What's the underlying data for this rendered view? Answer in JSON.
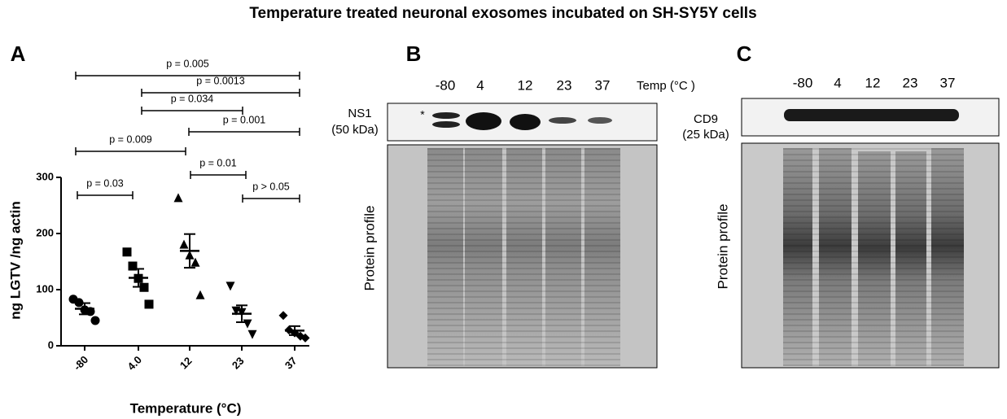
{
  "title": "Temperature treated neuronal exosomes incubated on SH-SY5Y cells",
  "chart_data": {
    "type": "scatter",
    "panel_label": "A",
    "y_label": "ng LGTV /ng actin",
    "x_label": "Temperature (°C)",
    "categories": [
      "-80",
      "4.0",
      "12",
      "23",
      "37"
    ],
    "markers": [
      "circle",
      "square",
      "triangle",
      "triangle-down",
      "diamond"
    ],
    "color": "#000000",
    "values": [
      [
        83,
        77,
        64,
        61,
        45
      ],
      [
        167,
        142,
        120,
        104,
        74
      ],
      [
        264,
        181,
        162,
        149,
        91
      ],
      [
        106,
        62,
        59,
        39,
        20
      ],
      [
        54,
        28,
        23,
        17,
        14
      ]
    ],
    "means": [
      66,
      121,
      169,
      57,
      27
    ],
    "sem": [
      10,
      16,
      30,
      15,
      8
    ],
    "ylim": [
      0,
      300
    ],
    "yticks": [
      0,
      100,
      200,
      300
    ],
    "annotations": [
      "p = 0.005",
      "p = 0.0013",
      "p = 0.034",
      "p = 0.001",
      "p = 0.009",
      "p = 0.01",
      "p = 0.03",
      "p > 0.05"
    ]
  },
  "panel_b": {
    "label": "B",
    "lanes": [
      "-80",
      "4",
      "12",
      "23",
      "37"
    ],
    "temp_label": "Temp (°C )",
    "blot": "NS1",
    "size": "(50 kDa)",
    "star": "*",
    "gel": "Protein profile"
  },
  "panel_c": {
    "label": "C",
    "lanes": [
      "-80",
      "4",
      "12",
      "23",
      "37"
    ],
    "blot": "CD9",
    "size": "(25 kDa)",
    "gel": "Protein profile"
  }
}
